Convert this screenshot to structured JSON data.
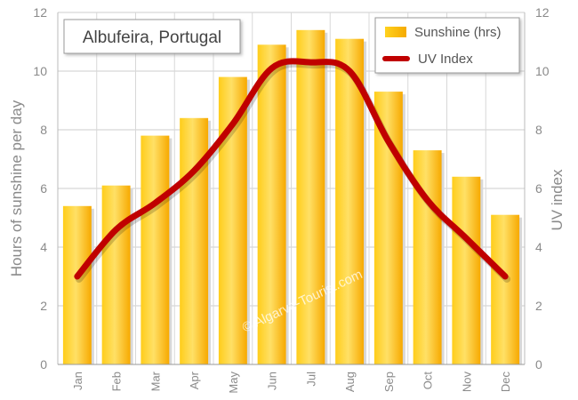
{
  "chart_data": {
    "type": "bar",
    "title": "Albufeira, Portugal",
    "categories": [
      "Jan",
      "Feb",
      "Mar",
      "Apr",
      "May",
      "Jun",
      "Jul",
      "Aug",
      "Sep",
      "Oct",
      "Nov",
      "Dec"
    ],
    "series": [
      {
        "name": "Sunshine (hrs)",
        "type": "bar",
        "axis": "left",
        "values": [
          5.4,
          6.1,
          7.8,
          8.4,
          9.8,
          10.9,
          11.4,
          11.1,
          9.3,
          7.3,
          6.4,
          5.1
        ]
      },
      {
        "name": "UV Index",
        "type": "line",
        "axis": "right",
        "values": [
          3.0,
          4.6,
          5.5,
          6.6,
          8.2,
          10.1,
          10.3,
          10.0,
          7.6,
          5.6,
          4.3,
          3.0
        ]
      }
    ],
    "ylabel": "Hours of sunshine per day",
    "y2label": "UV index",
    "ylim": [
      0,
      12
    ],
    "y2lim": [
      0,
      12
    ],
    "yticks": [
      0,
      2,
      4,
      6,
      8,
      10,
      12
    ],
    "grid": true,
    "legend": "top-right",
    "watermark": "© Algarve-Tourist.com",
    "colors": {
      "bar": "#ffc400",
      "bar_light": "#ffe566",
      "bar_dark": "#f5a800",
      "line": "#c00000",
      "grid": "#cccccc"
    }
  }
}
